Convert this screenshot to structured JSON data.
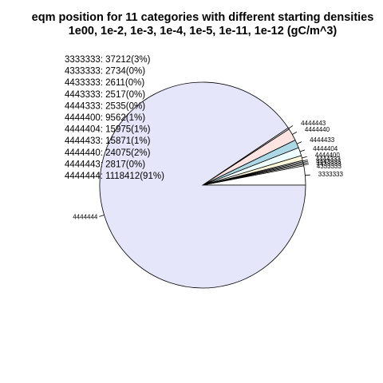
{
  "chart_data": {
    "type": "pie",
    "title": "eqm position for 11 categories with different starting densities",
    "subtitle": "1e00, 1e-2, 1e-3, 1e-4, 1e-5, 1e-11, 1e-12 (gC/m^3)",
    "slices": [
      {
        "label": "3333333",
        "value": 37212,
        "color": "#ffffff"
      },
      {
        "label": "4333333",
        "value": 2734,
        "color": "#ffffff"
      },
      {
        "label": "4433333",
        "value": 2611,
        "color": "#ffffff"
      },
      {
        "label": "4443333",
        "value": 2517,
        "color": "#ffffff"
      },
      {
        "label": "4444333",
        "value": 2535,
        "color": "#ffffff"
      },
      {
        "label": "4444400",
        "value": 9562,
        "color": "#fff8dc"
      },
      {
        "label": "4444404",
        "value": 15975,
        "color": "#f0ffff"
      },
      {
        "label": "4444433",
        "value": 15871,
        "color": "#add8e6"
      },
      {
        "label": "4444440",
        "value": 24075,
        "color": "#ffe4e1"
      },
      {
        "label": "4444443",
        "value": 2817,
        "color": "#ffffff"
      },
      {
        "label": "4444444",
        "value": 1118412,
        "color": "#e6e6fa"
      }
    ],
    "legend_entries": [
      "3333333: 37212(3%)",
      "4333333: 2734(0%)",
      "4433333: 2611(0%)",
      "4443333: 2517(0%)",
      "4444333: 2535(0%)",
      "4444400: 9562(1%)",
      "4444404: 15975(1%)",
      "4444433: 15871(1%)",
      "4444440: 24075(2%)",
      "4444443: 2817(0%)",
      "4444444: 1118412(91%)"
    ],
    "direction": "counterclockwise",
    "start_angle": "3 o'clock",
    "legend_position": "top-left"
  }
}
